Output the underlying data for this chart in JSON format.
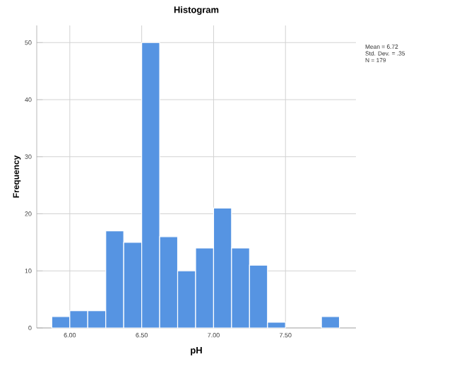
{
  "chart_data": {
    "type": "histogram",
    "title": "Histogram",
    "xlabel": "pH",
    "ylabel": "Frequency",
    "bins": [
      5.875,
      6.0,
      6.125,
      6.25,
      6.375,
      6.5,
      6.625,
      6.75,
      6.875,
      7.0,
      7.125,
      7.25,
      7.375,
      7.5,
      7.625,
      7.75,
      7.875
    ],
    "values": [
      2,
      3,
      3,
      17,
      15,
      50,
      16,
      10,
      14,
      21,
      14,
      11,
      1,
      0,
      0,
      2
    ],
    "color": "#5694e2",
    "xlim": [
      5.77,
      7.99
    ],
    "ylim": [
      0,
      53
    ],
    "xticks": [
      {
        "value": 6.0,
        "label": "6.00"
      },
      {
        "value": 6.5,
        "label": "6.50"
      },
      {
        "value": 7.0,
        "label": "7.00"
      },
      {
        "value": 7.5,
        "label": "7.50"
      }
    ],
    "yticks": [
      0,
      10,
      20,
      30,
      40,
      50
    ],
    "grid": true,
    "annotations": [
      "Mean = 6.72",
      "Std. Dev. = .35",
      "N = 179"
    ]
  }
}
